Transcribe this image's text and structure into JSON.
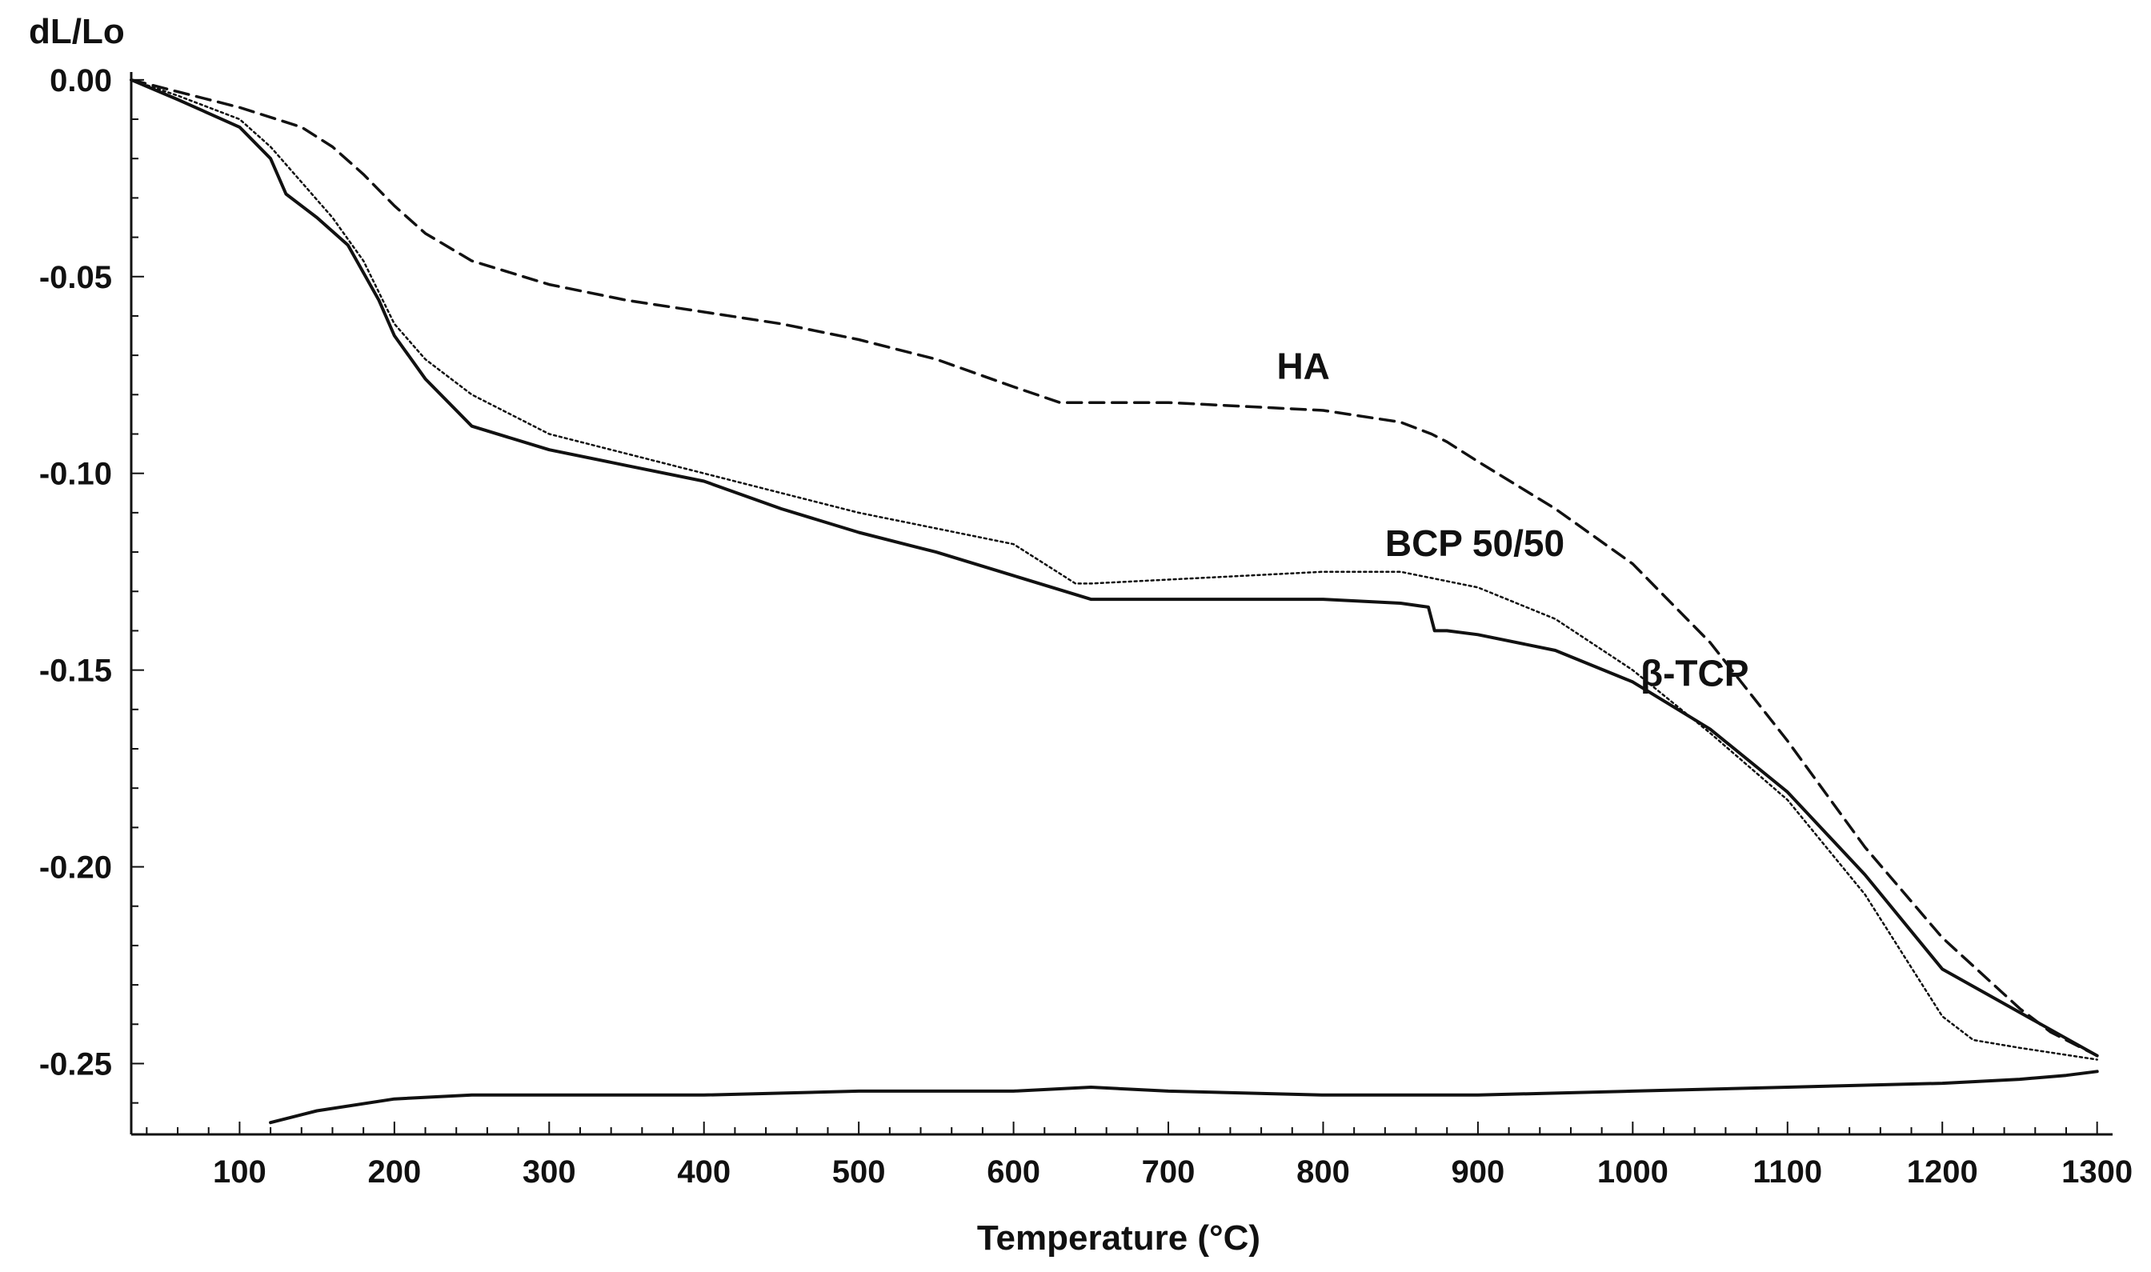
{
  "chart_data": {
    "type": "line",
    "title": "",
    "xlabel": "Temperature (°C)",
    "ylabel": "dL/Lo",
    "xlim": [
      30,
      1310
    ],
    "ylim": [
      -0.268,
      0.002
    ],
    "xticks": [
      100,
      200,
      300,
      400,
      500,
      600,
      700,
      800,
      900,
      1000,
      1100,
      1200,
      1300
    ],
    "yticks": [
      0.0,
      -0.05,
      -0.1,
      -0.15,
      -0.2,
      -0.25
    ],
    "ytick_labels": [
      "0.00",
      "-0.05",
      "-0.10",
      "-0.15",
      "-0.20",
      "-0.25"
    ],
    "grid": false,
    "legend": "inline labels",
    "series": [
      {
        "name": "HA",
        "style": "dashed",
        "label": "HA",
        "label_at": [
          770,
          -0.076
        ],
        "x": [
          30,
          60,
          100,
          140,
          160,
          180,
          200,
          220,
          250,
          300,
          350,
          400,
          450,
          500,
          550,
          600,
          630,
          650,
          700,
          750,
          800,
          850,
          870,
          880,
          900,
          950,
          1000,
          1050,
          1100,
          1150,
          1200,
          1250,
          1270,
          1290,
          1300
        ],
        "y": [
          0.0,
          -0.003,
          -0.007,
          -0.012,
          -0.017,
          -0.024,
          -0.032,
          -0.039,
          -0.046,
          -0.052,
          -0.056,
          -0.059,
          -0.062,
          -0.066,
          -0.071,
          -0.078,
          -0.082,
          -0.082,
          -0.082,
          -0.083,
          -0.084,
          -0.087,
          -0.09,
          -0.092,
          -0.097,
          -0.109,
          -0.123,
          -0.143,
          -0.168,
          -0.195,
          -0.218,
          -0.236,
          -0.242,
          -0.246,
          -0.248
        ]
      },
      {
        "name": "BCP 50/50",
        "style": "dotted",
        "label": "BCP 50/50",
        "label_at": [
          840,
          -0.121
        ],
        "x": [
          30,
          60,
          100,
          120,
          140,
          160,
          180,
          200,
          220,
          250,
          300,
          350,
          400,
          450,
          500,
          550,
          600,
          620,
          640,
          650,
          700,
          750,
          800,
          850,
          900,
          950,
          1000,
          1050,
          1100,
          1150,
          1200,
          1220,
          1250,
          1300
        ],
        "y": [
          0.0,
          -0.004,
          -0.01,
          -0.017,
          -0.026,
          -0.035,
          -0.046,
          -0.062,
          -0.071,
          -0.08,
          -0.09,
          -0.095,
          -0.1,
          -0.105,
          -0.11,
          -0.114,
          -0.118,
          -0.123,
          -0.128,
          -0.128,
          -0.127,
          -0.126,
          -0.125,
          -0.125,
          -0.129,
          -0.137,
          -0.15,
          -0.166,
          -0.183,
          -0.207,
          -0.238,
          -0.244,
          -0.246,
          -0.249
        ]
      },
      {
        "name": "β-TCP",
        "style": "solid",
        "label": "β-TCP",
        "label_at": [
          1005,
          -0.154
        ],
        "x": [
          30,
          60,
          100,
          120,
          130,
          150,
          170,
          190,
          200,
          220,
          250,
          300,
          350,
          400,
          450,
          500,
          550,
          600,
          650,
          700,
          750,
          800,
          850,
          868,
          872,
          880,
          900,
          950,
          1000,
          1050,
          1100,
          1150,
          1200,
          1250,
          1300
        ],
        "y": [
          0.0,
          -0.005,
          -0.012,
          -0.02,
          -0.029,
          -0.035,
          -0.042,
          -0.056,
          -0.065,
          -0.076,
          -0.088,
          -0.094,
          -0.098,
          -0.102,
          -0.109,
          -0.115,
          -0.12,
          -0.126,
          -0.132,
          -0.132,
          -0.132,
          -0.132,
          -0.133,
          -0.134,
          -0.14,
          -0.14,
          -0.141,
          -0.145,
          -0.153,
          -0.165,
          -0.181,
          -0.202,
          -0.226,
          -0.237,
          -0.248
        ]
      },
      {
        "name": "cooling",
        "style": "solid",
        "label": "",
        "x": [
          1300,
          1280,
          1250,
          1200,
          1100,
          1000,
          900,
          800,
          700,
          650,
          600,
          500,
          400,
          300,
          250,
          200,
          150,
          120
        ],
        "y": [
          -0.252,
          -0.253,
          -0.254,
          -0.255,
          -0.256,
          -0.257,
          -0.258,
          -0.258,
          -0.257,
          -0.256,
          -0.257,
          -0.257,
          -0.258,
          -0.258,
          -0.258,
          -0.259,
          -0.262,
          -0.265
        ]
      }
    ]
  }
}
